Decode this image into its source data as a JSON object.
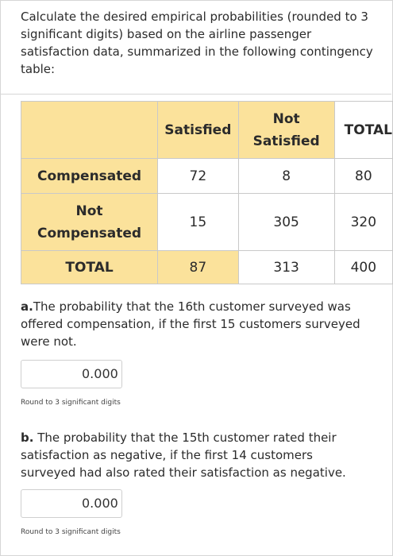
{
  "intro": "Calculate the desired empirical probabilities (rounded to 3 significant digits) based on the airline passenger satisfaction data, summarized in the following contingency table:",
  "table": {
    "header": [
      "",
      "Satisfied",
      "Not Satisfied",
      "TOTAL"
    ],
    "rows": [
      {
        "label": "Compensated",
        "values": [
          "72",
          "8",
          "80"
        ]
      },
      {
        "label": "Not Compensated",
        "values": [
          "15",
          "305",
          "320"
        ]
      },
      {
        "label": "TOTAL",
        "values": [
          "87",
          "313",
          "400"
        ]
      }
    ]
  },
  "question_a": {
    "label": "a.",
    "text": "The probability that the 16th customer surveyed was offered compensation, if the first 15 customers surveyed were not.",
    "answer": "0.000",
    "hint": "Round to 3 significant digits"
  },
  "question_b": {
    "label": "b.",
    "text": " The probability that the 15th customer rated their satisfaction as negative, if the first 14 customers surveyed had also rated their satisfaction as negative.",
    "answer": "0.000",
    "hint": "Round to 3 significant digits"
  },
  "colors": {
    "header_fill": "#fbe29b",
    "border": "#c9c9c9"
  }
}
